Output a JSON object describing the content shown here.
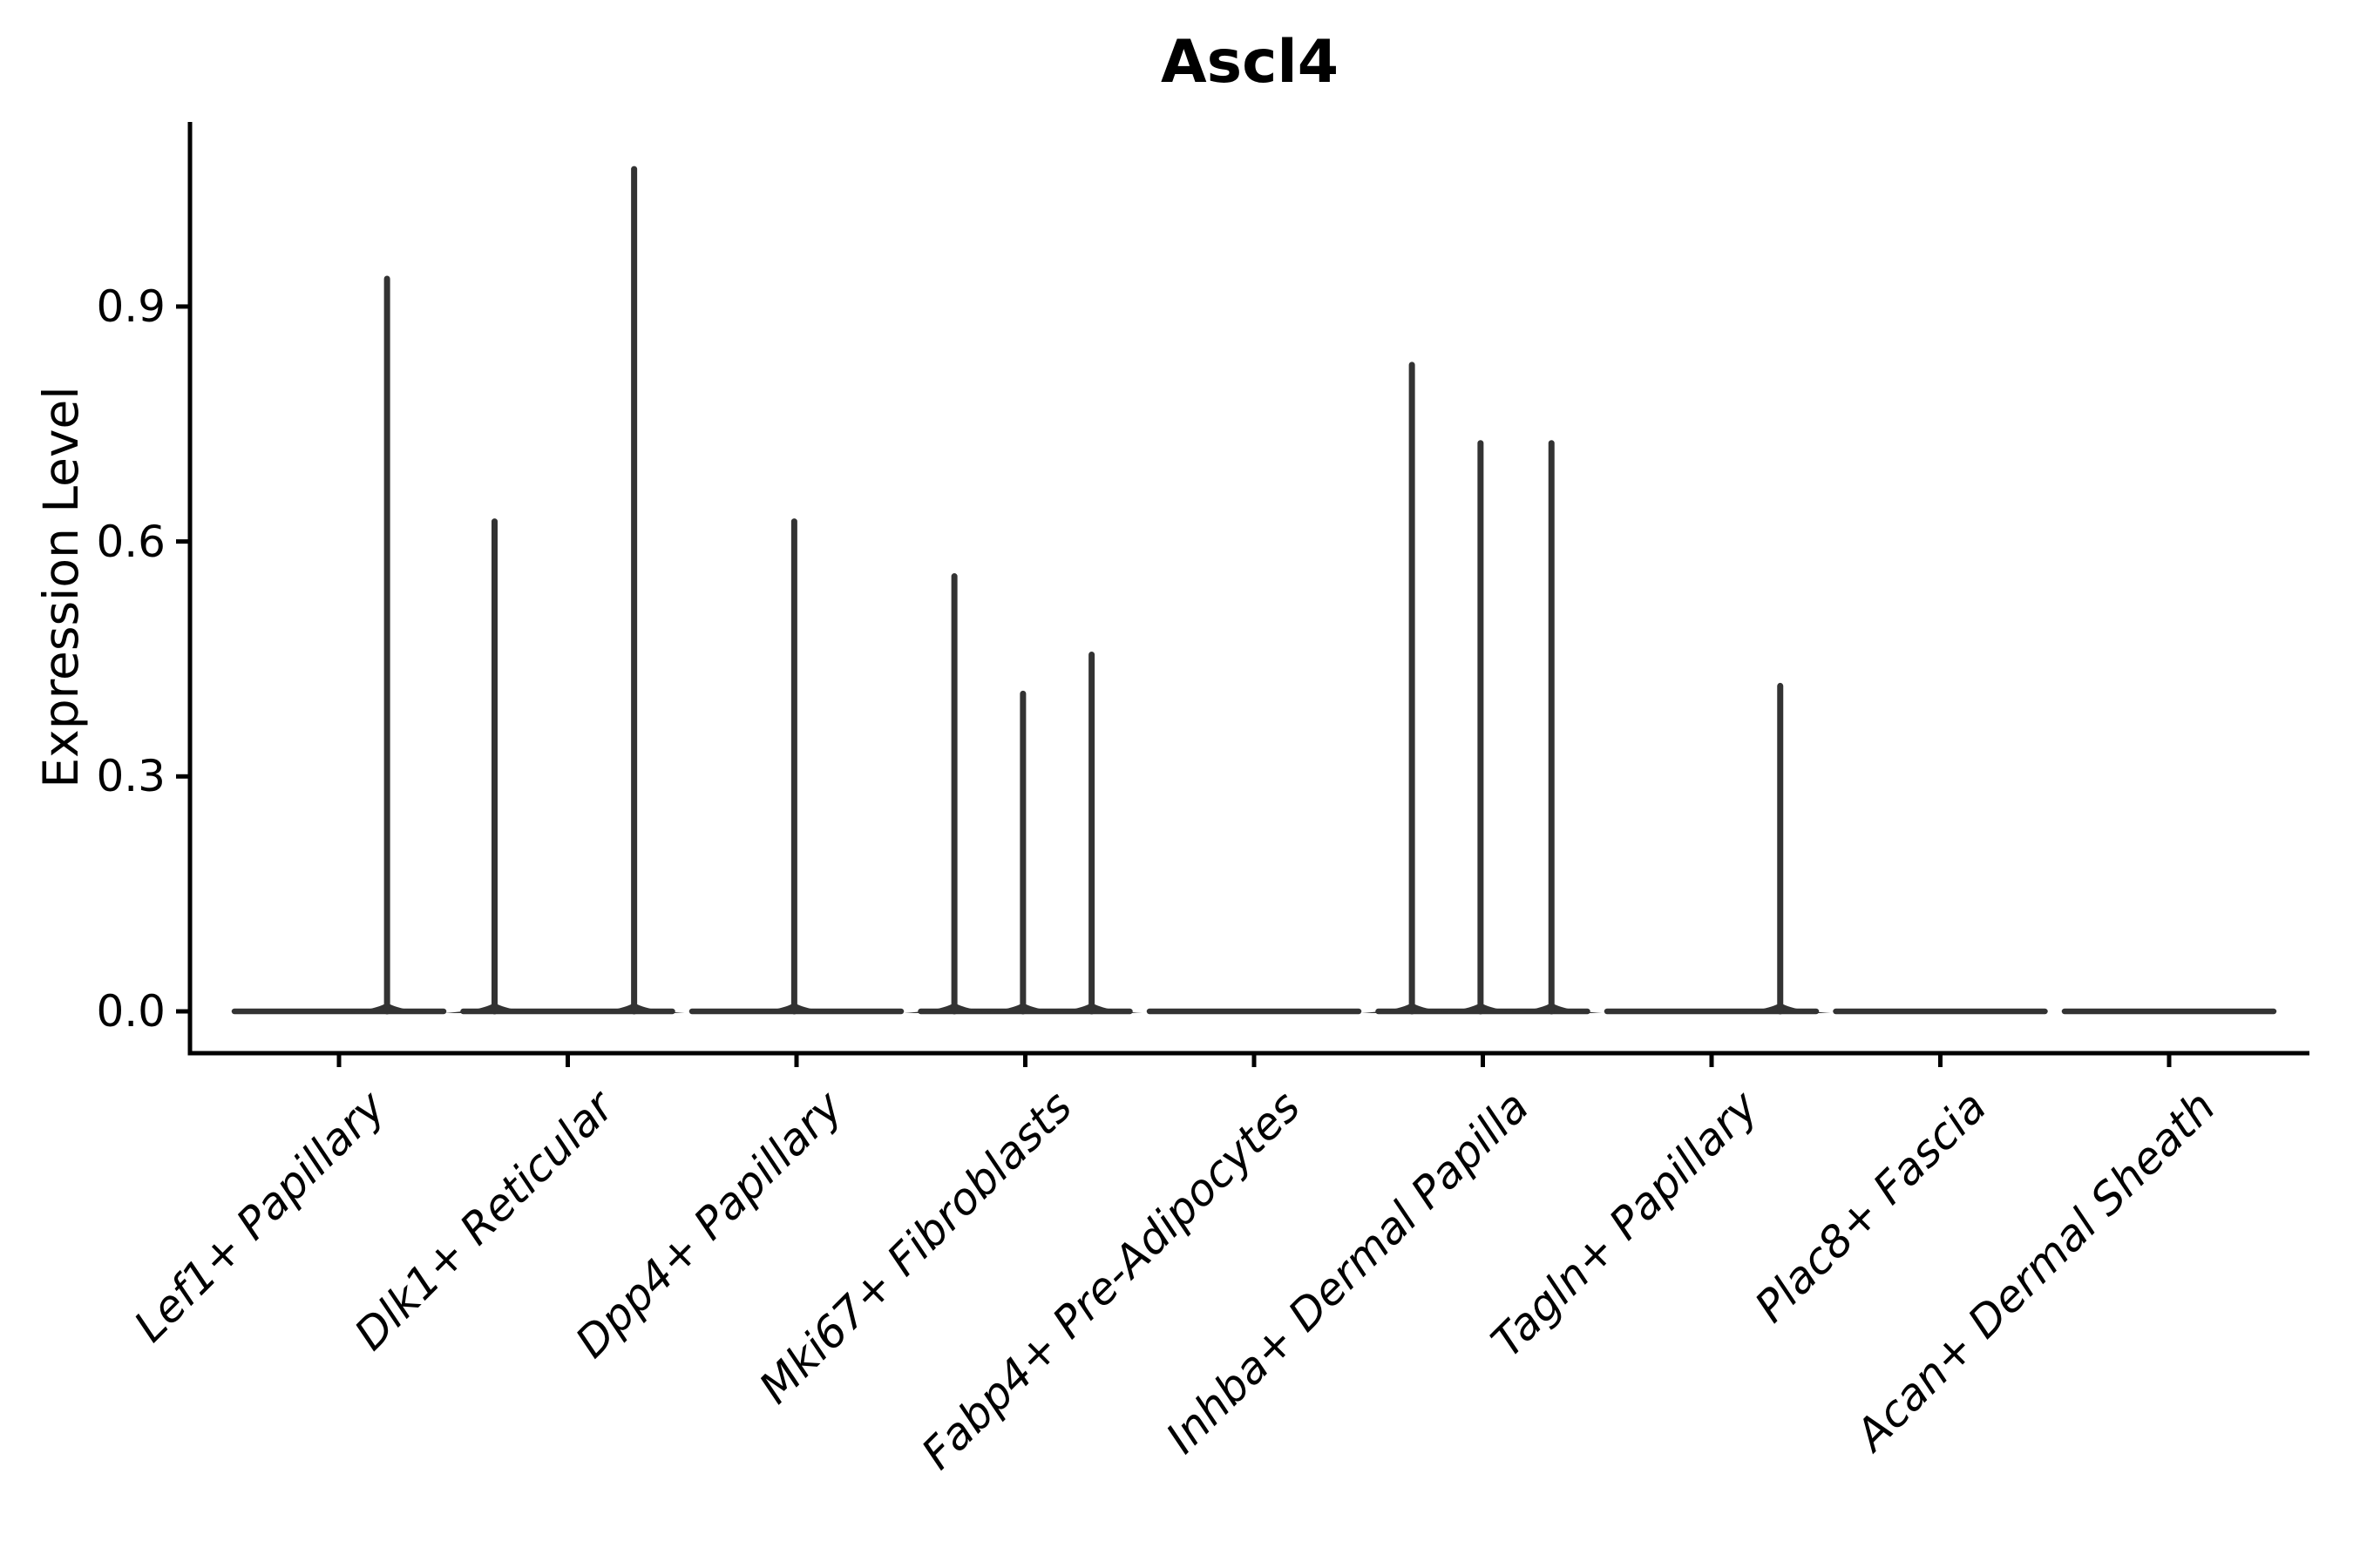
{
  "chart_data": {
    "type": "violin",
    "title": "Ascl4",
    "ylabel": "Expression Level",
    "ytick_labels": [
      "0.0",
      "0.3",
      "0.6",
      "0.9"
    ],
    "ytick_values": [
      0.0,
      0.3,
      0.6,
      0.9
    ],
    "ylim": [
      -0.053,
      1.136
    ],
    "grid": false,
    "legend": "none",
    "categories": [
      "Lef1+ Papillary",
      "Dlk1+ Reticular",
      "Dpp4+ Papillary",
      "Mki67+ Fibroblasts",
      "Fabp4+ Pre-Adipocytes",
      "Inhba+ Dermal Papilla",
      "Tagln+ Papillary",
      "Plac8+ Fascia",
      "Acan+ Dermal Sheath"
    ],
    "violins": [
      {
        "category": "Lef1+ Papillary",
        "baseline_value": 0,
        "spikes": [
          {
            "offset": 0.21,
            "max": 0.94
          }
        ]
      },
      {
        "category": "Dlk1+ Reticular",
        "baseline_value": 0,
        "spikes": [
          {
            "offset": -0.32,
            "max": 0.63
          },
          {
            "offset": 0.29,
            "max": 1.08
          }
        ]
      },
      {
        "category": "Dpp4+ Papillary",
        "baseline_value": 0,
        "spikes": [
          {
            "offset": -0.01,
            "max": 0.63
          }
        ]
      },
      {
        "category": "Mki67+ Fibroblasts",
        "baseline_value": 0,
        "spikes": [
          {
            "offset": -0.31,
            "max": 0.56
          },
          {
            "offset": -0.01,
            "max": 0.41
          },
          {
            "offset": 0.29,
            "max": 0.46
          }
        ]
      },
      {
        "category": "Fabp4+ Pre-Adipocytes",
        "baseline_value": 0,
        "spikes": []
      },
      {
        "category": "Inhba+ Dermal Papilla",
        "baseline_value": 0,
        "spikes": [
          {
            "offset": -0.31,
            "max": 0.83
          },
          {
            "offset": -0.01,
            "max": 0.73
          },
          {
            "offset": 0.3,
            "max": 0.73
          }
        ]
      },
      {
        "category": "Tagln+ Papillary",
        "baseline_value": 0,
        "spikes": [
          {
            "offset": 0.3,
            "max": 0.42
          }
        ]
      },
      {
        "category": "Plac8+ Fascia",
        "baseline_value": 0,
        "spikes": []
      },
      {
        "category": "Acan+ Dermal Sheath",
        "baseline_value": 0,
        "spikes": []
      }
    ],
    "colors": {
      "violin_line": "#333333",
      "axis": "#000000",
      "text": "#000000",
      "background": "#ffffff"
    }
  }
}
